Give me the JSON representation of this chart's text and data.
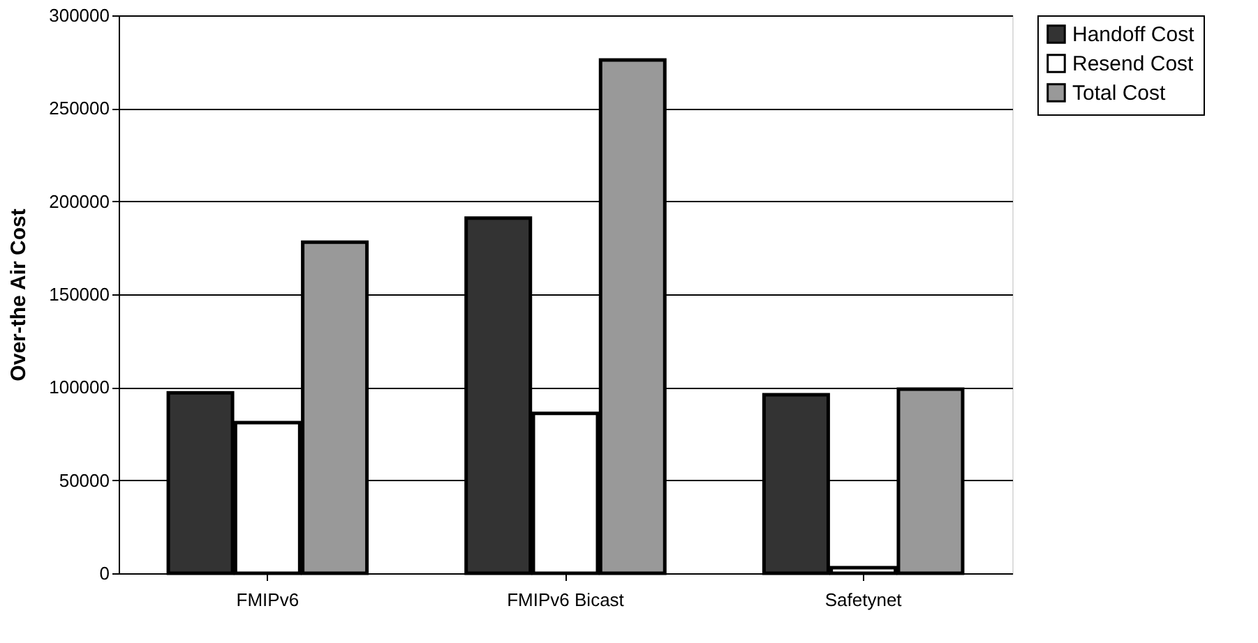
{
  "chart_data": {
    "type": "bar",
    "ylabel": "Over-the Air Cost",
    "categories": [
      "FMIPv6",
      "FMIPv6 Bicast",
      "Safetynet"
    ],
    "series": [
      {
        "name": "Handoff Cost",
        "color": "#333333",
        "values": [
          97000,
          191000,
          96000
        ]
      },
      {
        "name": "Resend Cost",
        "color": "#ffffff",
        "values": [
          81000,
          86000,
          3000
        ]
      },
      {
        "name": "Total Cost",
        "color": "#999999",
        "values": [
          178000,
          276000,
          99000
        ]
      }
    ],
    "ylim": [
      0,
      300000
    ],
    "yticks": [
      0,
      50000,
      100000,
      150000,
      200000,
      250000,
      300000
    ],
    "grid": "y",
    "legend": "right"
  }
}
